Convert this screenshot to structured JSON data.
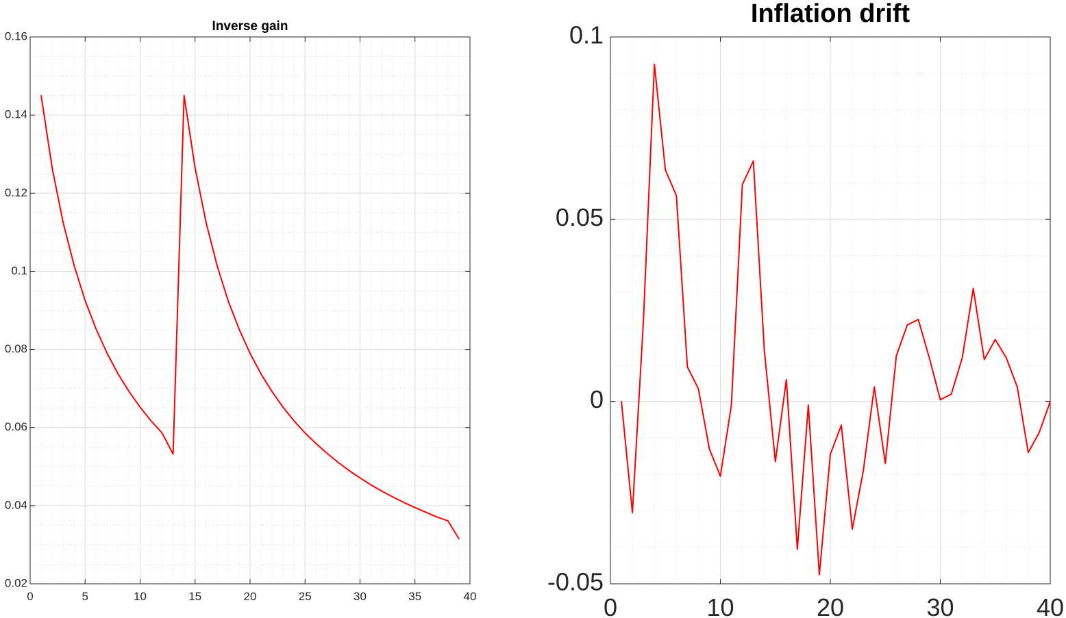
{
  "chart_data": [
    {
      "type": "line",
      "title": "Inverse gain",
      "xlabel": "",
      "ylabel": "",
      "xlim": [
        0,
        40
      ],
      "ylim": [
        0.02,
        0.16
      ],
      "xticks": [
        0,
        5,
        10,
        15,
        20,
        25,
        30,
        35,
        40
      ],
      "xtick_labels": [
        "0",
        "5",
        "10",
        "15",
        "20",
        "25",
        "30",
        "35",
        "40"
      ],
      "yticks": [
        0.02,
        0.04,
        0.06,
        0.08,
        0.1,
        0.12,
        0.14,
        0.16
      ],
      "ytick_labels": [
        "0.02",
        "0.04",
        "0.06",
        "0.08",
        "0.1",
        "0.12",
        "0.14",
        "0.16"
      ],
      "grid": true,
      "minor_grid": true,
      "series": [
        {
          "color": "#ff0000",
          "x": [
            1,
            2,
            3,
            4,
            5,
            6,
            7,
            8,
            9,
            10,
            11,
            12,
            13,
            14,
            15,
            16,
            17,
            18,
            19,
            20,
            21,
            22,
            23,
            24,
            25,
            26,
            27,
            28,
            29,
            30,
            31,
            32,
            33,
            34,
            35,
            36,
            37,
            38,
            39
          ],
          "y": [
            0.145,
            0.1265,
            0.1125,
            0.1015,
            0.0925,
            0.0852,
            0.079,
            0.0737,
            0.0692,
            0.0652,
            0.0617,
            0.0586,
            0.0532,
            0.145,
            0.1265,
            0.1125,
            0.1015,
            0.0925,
            0.0852,
            0.079,
            0.0737,
            0.0692,
            0.0652,
            0.0617,
            0.0586,
            0.0559,
            0.0534,
            0.0511,
            0.049,
            0.0471,
            0.0453,
            0.0437,
            0.0422,
            0.0408,
            0.0395,
            0.0383,
            0.0371,
            0.0361,
            0.0315
          ]
        }
      ]
    },
    {
      "type": "line",
      "title": "Inflation drift",
      "xlabel": "",
      "ylabel": "",
      "xlim": [
        0,
        40
      ],
      "ylim": [
        -0.05,
        0.1
      ],
      "xticks": [
        0,
        10,
        20,
        30,
        40
      ],
      "xtick_labels": [
        "0",
        "10",
        "20",
        "30",
        "40"
      ],
      "yticks": [
        -0.05,
        0,
        0.05,
        0.1
      ],
      "ytick_labels": [
        "-0.05",
        "0",
        "0.05",
        "0.1"
      ],
      "grid": true,
      "minor_grid": true,
      "series": [
        {
          "color": "#ff0000",
          "x": [
            1,
            2,
            3,
            4,
            5,
            6,
            7,
            8,
            9,
            10,
            11,
            12,
            13,
            14,
            15,
            16,
            17,
            18,
            19,
            20,
            21,
            22,
            23,
            24,
            25,
            26,
            27,
            28,
            29,
            30,
            31,
            32,
            33,
            34,
            35,
            36,
            37,
            38,
            39,
            40
          ],
          "y": [
            0.0,
            -0.0305,
            0.022,
            0.0925,
            0.0635,
            0.0565,
            0.0095,
            0.0035,
            -0.013,
            -0.0205,
            -0.001,
            0.0595,
            0.066,
            0.014,
            -0.0165,
            0.006,
            -0.0405,
            -0.001,
            -0.0475,
            -0.0145,
            -0.0065,
            -0.035,
            -0.019,
            0.004,
            -0.017,
            0.0125,
            0.021,
            0.0225,
            0.012,
            0.0005,
            0.002,
            0.012,
            0.031,
            0.0115,
            0.017,
            0.012,
            0.004,
            -0.014,
            -0.0085,
            0.0
          ]
        }
      ]
    }
  ]
}
